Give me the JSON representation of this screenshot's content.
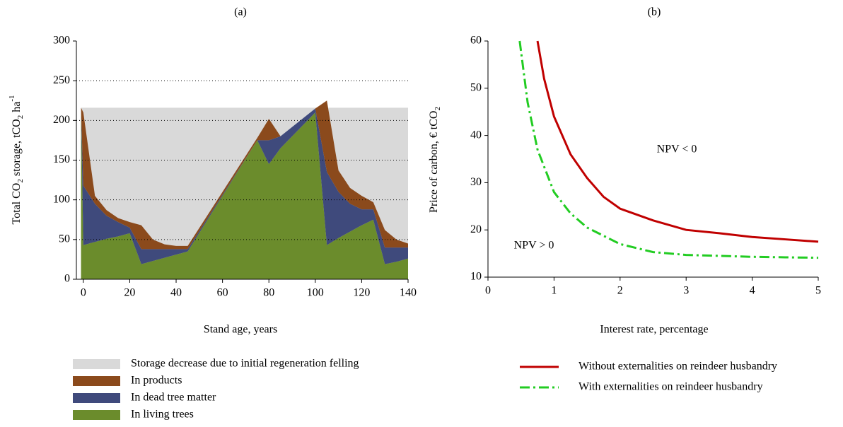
{
  "chart_data": [
    {
      "type": "area",
      "title": "(a)",
      "xlabel": "Stand age, years",
      "ylabel": [
        "Total CO",
        "2",
        " storage, tCO",
        "2",
        " ha",
        "-1"
      ],
      "x": [
        -1,
        0,
        5,
        10,
        15,
        20,
        25,
        30,
        35,
        40,
        45,
        75,
        80,
        85,
        100,
        105,
        110,
        115,
        120,
        125,
        130,
        135,
        140
      ],
      "series": [
        {
          "name": "Storage decrease due to initial regeneration felling",
          "color": "#d9d9d9",
          "stacked": false,
          "values": [
            216,
            216,
            216,
            216,
            216,
            216,
            216,
            216,
            216,
            216,
            216,
            216,
            216,
            216,
            216,
            216,
            216,
            216,
            216,
            216,
            216,
            216,
            216
          ]
        },
        {
          "name": "In products",
          "color": "#8b4a1c",
          "stacked": true,
          "values": [
            0,
            92,
            10,
            7,
            5,
            7,
            30,
            12,
            6,
            4,
            4,
            3,
            27,
            0,
            0,
            90,
            27,
            20,
            17,
            9,
            22,
            10,
            5
          ]
        },
        {
          "name": "In dead tree matter",
          "color": "#3f4a7c",
          "stacked": true,
          "values": [
            0,
            75,
            48,
            29,
            18,
            7,
            19,
            15,
            11,
            7,
            3,
            0,
            30,
            15,
            5,
            92,
            58,
            35,
            20,
            13,
            21,
            18,
            14
          ]
        },
        {
          "name": "In living trees",
          "color": "#6b8c2c",
          "stacked": true,
          "values": [
            216,
            43,
            47,
            51,
            54,
            58,
            19,
            23,
            27,
            31,
            35,
            175,
            145,
            165,
            210,
            43,
            52,
            60,
            68,
            75,
            19,
            22,
            26
          ]
        }
      ],
      "xlim": [
        -3,
        140
      ],
      "xticks": [
        0,
        20,
        40,
        60,
        80,
        100,
        120,
        140
      ],
      "ylim": [
        0,
        300
      ],
      "yticks": [
        0,
        50,
        100,
        150,
        200,
        250,
        300
      ],
      "grid": true
    },
    {
      "type": "line",
      "title": "(b)",
      "xlabel": "Interest rate, percentage",
      "ylabel": [
        "Price of carbon, € tCO",
        "2"
      ],
      "annotations": [
        "NPV < 0",
        "NPV > 0"
      ],
      "series": [
        {
          "name": "Without externalities on reindeer husbandry",
          "color": "#c00000",
          "dash": "solid",
          "x": [
            0.75,
            0.85,
            1,
            1.25,
            1.5,
            1.75,
            2,
            2.5,
            3,
            3.5,
            4,
            4.5,
            5
          ],
          "values": [
            60,
            52,
            44,
            36,
            31,
            27,
            24.5,
            22,
            20,
            19.3,
            18.5,
            18,
            17.5
          ]
        },
        {
          "name": "With externalities on reindeer husbandry",
          "color": "#22cc22",
          "dash": "dashdot",
          "x": [
            0.48,
            0.6,
            0.75,
            1,
            1.25,
            1.5,
            2,
            2.5,
            3,
            3.5,
            4,
            4.5,
            5
          ],
          "values": [
            60,
            47,
            37,
            28,
            23.5,
            20.5,
            17,
            15.3,
            14.7,
            14.5,
            14.3,
            14.2,
            14.1
          ]
        }
      ],
      "xlim": [
        0,
        5
      ],
      "xticks": [
        0,
        1,
        2,
        3,
        4,
        5
      ],
      "ylim": [
        10,
        60
      ],
      "yticks": [
        10,
        20,
        30,
        40,
        50,
        60
      ],
      "grid": false
    }
  ]
}
